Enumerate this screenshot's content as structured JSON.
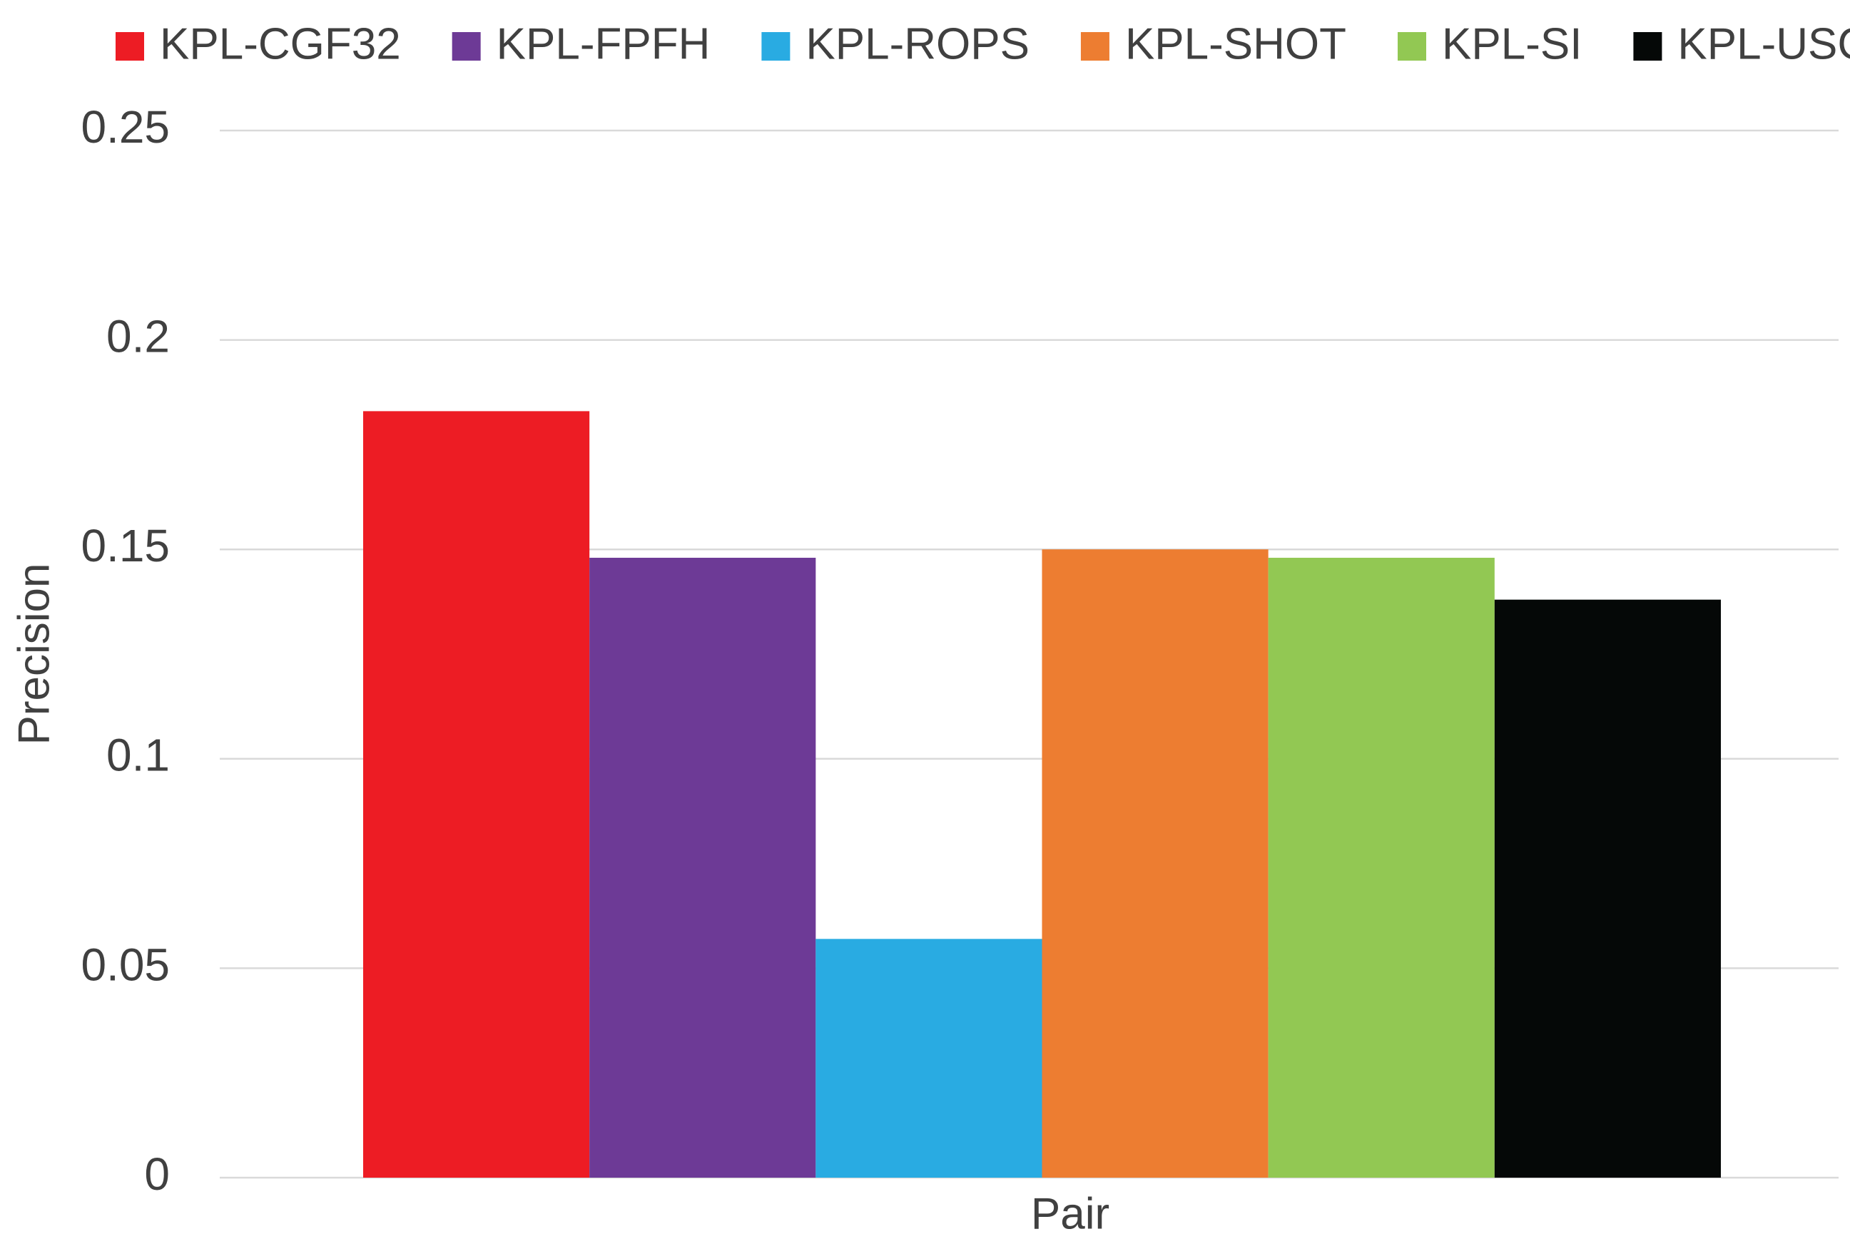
{
  "chart_data": {
    "type": "bar",
    "y_label": "Precision",
    "x_label": "Pair",
    "categories": [
      "Pair"
    ],
    "series": [
      {
        "name": "KPL-CGF32",
        "color": "#ed1c24",
        "values": [
          0.183
        ]
      },
      {
        "name": "KPL-FPFH",
        "color": "#6d3a96",
        "values": [
          0.148
        ]
      },
      {
        "name": "KPL-ROPS",
        "color": "#29abe2",
        "values": [
          0.057
        ]
      },
      {
        "name": "KPL-SHOT",
        "color": "#ed7d31",
        "values": [
          0.15
        ]
      },
      {
        "name": "KPL-SI",
        "color": "#92c853",
        "values": [
          0.148
        ]
      },
      {
        "name": "KPL-USC",
        "color": "#050807",
        "values": [
          0.138
        ]
      }
    ],
    "ylim": [
      0,
      0.25
    ],
    "yticks": [
      0,
      0.05,
      0.1,
      0.15,
      0.2,
      0.25
    ],
    "grid": true,
    "legend": "top"
  }
}
